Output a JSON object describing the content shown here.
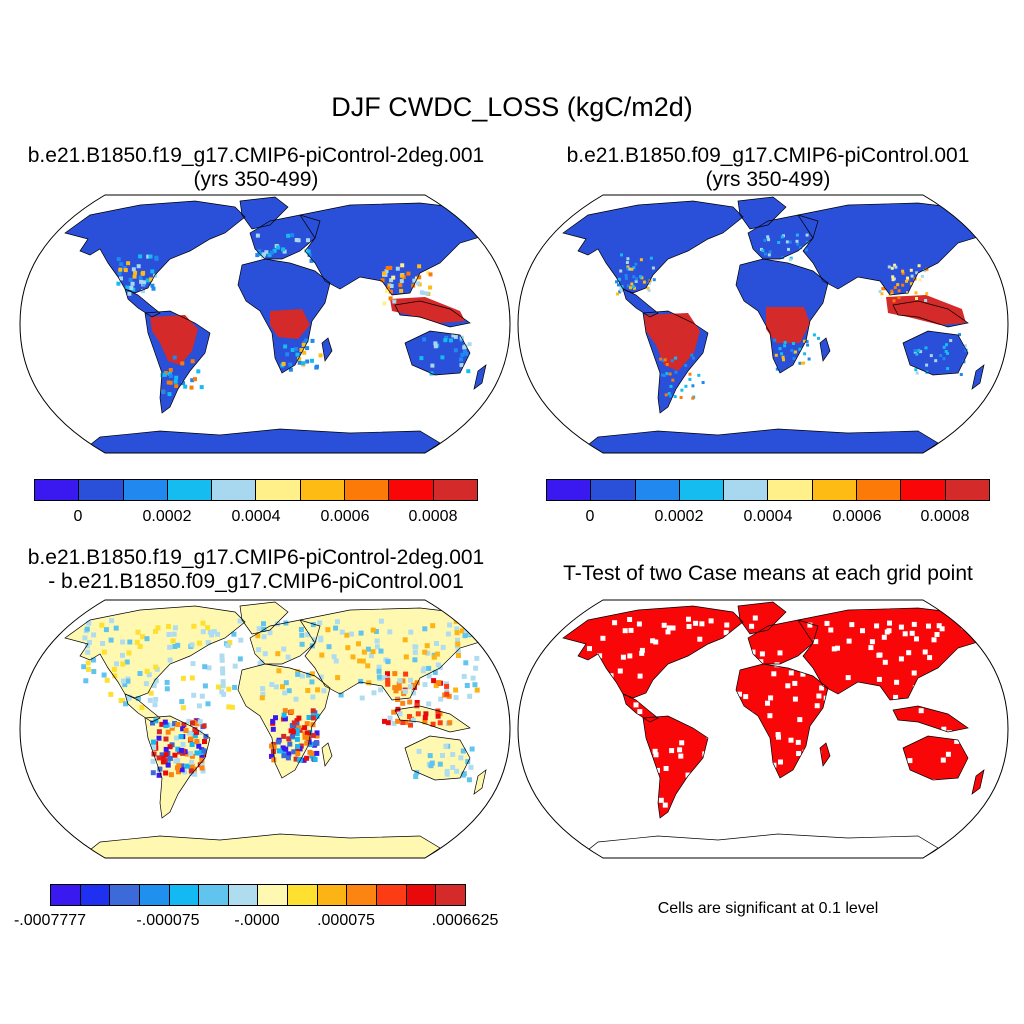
{
  "main_title": "DJF CWDC_LOSS (kgC/m2d)",
  "panels": {
    "p1": {
      "line1": "b.e21.B1850.f19_g17.CMIP6-piControl-2deg.001",
      "line2": "(yrs 350-499)"
    },
    "p2": {
      "line1": "b.e21.B1850.f09_g17.CMIP6-piControl.001",
      "line2": "(yrs 350-499)"
    },
    "p3": {
      "line1": "b.e21.B1850.f19_g17.CMIP6-piControl-2deg.001",
      "line2": "- b.e21.B1850.f09_g17.CMIP6-piControl.001"
    },
    "p4": {
      "line1": "T-Test of two Case means at each grid point"
    }
  },
  "colorbar_main": {
    "colors": [
      "#3a18f0",
      "#2a4fd8",
      "#2088ee",
      "#14bcf0",
      "#a8d8f0",
      "#fff08a",
      "#fdbb14",
      "#fb7a08",
      "#f80608",
      "#d42a2a"
    ],
    "labels": [
      "0",
      "0.0002",
      "0.0004",
      "0.0006",
      "0.0008"
    ]
  },
  "colorbar_diff": {
    "colors": [
      "#3a18f0",
      "#2030f0",
      "#3c6ad8",
      "#2090ee",
      "#14b8f2",
      "#60c4ee",
      "#b0dcf0",
      "#fff8b0",
      "#fde030",
      "#fcb414",
      "#fc8410",
      "#fc3c14",
      "#e80a0a",
      "#d42a2a"
    ],
    "labels": [
      "-.0007777",
      "-.000075",
      "-.0000",
      ".000075",
      ".0006625"
    ]
  },
  "significance_note": "Cells are significant at 0.1 level",
  "palette": {
    "base_low": "#2a4fd8",
    "high": "#d42a2a",
    "diff_base": "#fff8b0",
    "signif": "#f80608"
  }
}
